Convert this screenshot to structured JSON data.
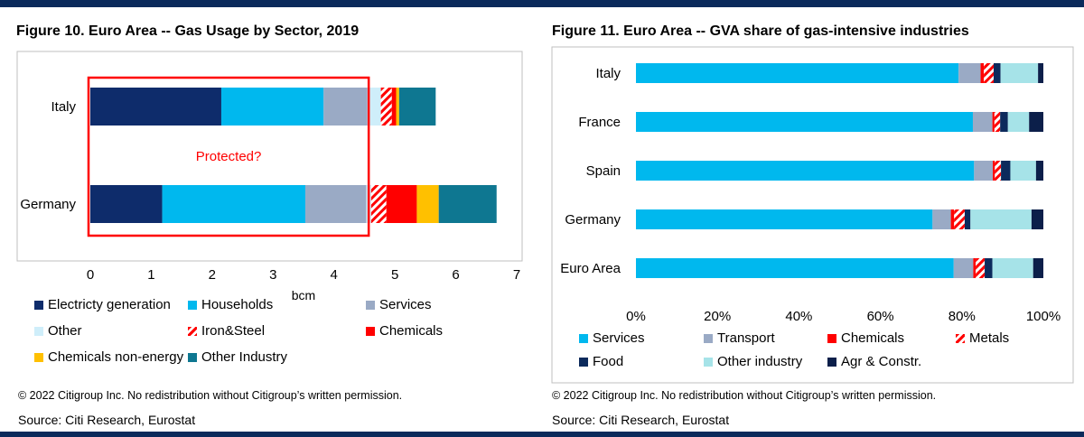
{
  "colors": {
    "dark_blue": "#0e2c6b",
    "cyan": "#00b8ee",
    "grey_blue": "#9aaac5",
    "light_cyan": "#cfeefa",
    "red": "#ff0000",
    "yellow": "#ffc000",
    "teal": "#0e7791",
    "light_teal": "#a6e3e8",
    "navy": "#0c1f4a",
    "frame": "#0b2a5b",
    "annotation_red": "#ff0000"
  },
  "left": {
    "title": "Figure 10. Euro Area -- Gas Usage by Sector, 2019",
    "copyright": "© 2022 Citigroup Inc. No redistribution without Citigroup’s written permission.",
    "source": "Source: Citi Research, Eurostat"
  },
  "right": {
    "title": "Figure 11. Euro Area -- GVA share of gas-intensive industries",
    "copyright": "© 2022 Citigroup Inc. No redistribution without Citigroup’s written permission.",
    "source": "Source: Citi Research, Eurostat"
  },
  "chart_data": [
    {
      "type": "bar",
      "orientation": "horizontal",
      "stacked": true,
      "title": "Figure 10. Euro Area -- Gas Usage by Sector, 2019",
      "xlabel": "bcm",
      "ylabel": "",
      "xlim": [
        0,
        7
      ],
      "xticks": [
        "0",
        "1",
        "2",
        "3",
        "4",
        "5",
        "6",
        "7"
      ],
      "categories": [
        "Italy",
        "Germany"
      ],
      "series": [
        {
          "name": "Electricty generation",
          "color": "#0e2c6b",
          "values": [
            2.15,
            1.18
          ]
        },
        {
          "name": "Households",
          "color": "#00b8ee",
          "values": [
            1.68,
            2.35
          ]
        },
        {
          "name": "Services",
          "color": "#9aaac5",
          "values": [
            0.72,
            1.0
          ]
        },
        {
          "name": "Other",
          "color": "#cfeefa",
          "values": [
            0.22,
            0.08
          ]
        },
        {
          "name": "Iron&Steel",
          "color": "#ff0000",
          "pattern": "hatch",
          "values": [
            0.18,
            0.25
          ]
        },
        {
          "name": "Chemicals",
          "color": "#ff0000",
          "values": [
            0.07,
            0.5
          ]
        },
        {
          "name": "Chemicals non-energy",
          "color": "#ffc000",
          "values": [
            0.05,
            0.36
          ]
        },
        {
          "name": "Other Industry",
          "color": "#0e7791",
          "values": [
            0.6,
            0.95
          ]
        }
      ],
      "legend_position": "bottom",
      "annotation": {
        "text": "Protected?",
        "color": "#ff0000",
        "x_range": [
          0,
          4.6
        ]
      }
    },
    {
      "type": "bar",
      "orientation": "horizontal",
      "stacked": true,
      "percent": true,
      "title": "Figure 11. Euro Area -- GVA share of gas-intensive industries",
      "xlabel": "",
      "ylabel": "",
      "xlim": [
        0,
        100
      ],
      "xticks": [
        "0%",
        "20%",
        "40%",
        "60%",
        "80%",
        "100%"
      ],
      "categories": [
        "Italy",
        "France",
        "Spain",
        "Germany",
        "Euro Area"
      ],
      "series": [
        {
          "name": "Services",
          "color": "#00b8ee",
          "values": [
            79.2,
            82.7,
            83.0,
            72.8,
            78.0
          ]
        },
        {
          "name": "Transport",
          "color": "#9aaac5",
          "values": [
            5.4,
            4.8,
            4.6,
            4.5,
            4.8
          ]
        },
        {
          "name": "Chemicals",
          "color": "#ff0000",
          "values": [
            0.8,
            0.5,
            0.5,
            0.8,
            0.6
          ]
        },
        {
          "name": "Metals",
          "color": "#ff0000",
          "pattern": "hatch",
          "values": [
            2.4,
            1.4,
            1.5,
            2.6,
            2.2
          ]
        },
        {
          "name": "Food",
          "color": "#0c2a5c",
          "values": [
            1.7,
            1.9,
            2.3,
            1.4,
            1.9
          ]
        },
        {
          "name": "Other industry",
          "color": "#a6e3e8",
          "values": [
            9.2,
            5.2,
            6.3,
            15.0,
            10.0
          ]
        },
        {
          "name": "Agr & Constr.",
          "color": "#0c1f4a",
          "values": [
            1.3,
            3.5,
            1.8,
            2.9,
            2.5
          ]
        }
      ],
      "legend_position": "bottom"
    }
  ]
}
